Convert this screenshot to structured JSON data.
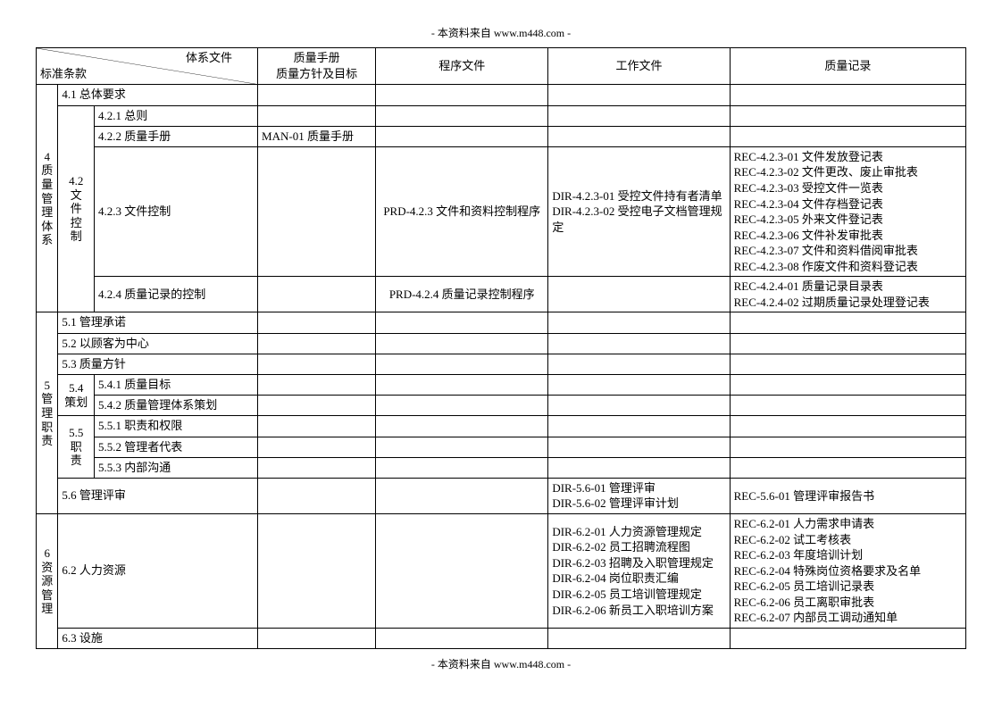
{
  "source_text": "- 本资料来自 www.m448.com -",
  "header": {
    "diag_top": "体系文件",
    "diag_bottom": "标准条款",
    "manual": "质量手册\n质量方针及目标",
    "proc": "程序文件",
    "work": "工作文件",
    "rec": "质量记录"
  },
  "s4": {
    "label": "4\n质\n量\n管\n理\n体\n系",
    "r1": "4.1 总体要求",
    "s42_label": "4.2\n文\n件\n控\n制",
    "r421": "4.2.1 总则",
    "r422": "4.2.2 质量手册",
    "r422_manual": "MAN-01  质量手册",
    "r423": "4.2.3 文件控制",
    "r423_proc": "PRD-4.2.3 文件和资料控制程序",
    "r423_work": [
      "DIR-4.2.3-01 受控文件持有者清单",
      "DIR-4.2.3-02 受控电子文档管理规定"
    ],
    "r423_rec": [
      "REC-4.2.3-01 文件发放登记表",
      "REC-4.2.3-02 文件更改、废止审批表",
      "REC-4.2.3-03 受控文件一览表",
      "REC-4.2.3-04 文件存档登记表",
      "REC-4.2.3-05 外来文件登记表",
      "REC-4.2.3-06 文件补发审批表",
      "REC-4.2.3-07 文件和资料借阅审批表",
      "REC-4.2.3-08 作废文件和资料登记表"
    ],
    "r424": "4.2.4 质量记录的控制",
    "r424_proc": "PRD-4.2.4 质量记录控制程序",
    "r424_rec": [
      "REC-4.2.4-01 质量记录目录表",
      "REC-4.2.4-02 过期质量记录处理登记表"
    ]
  },
  "s5": {
    "label": "5\n管\n理\n职\n责",
    "r51": "5.1 管理承诺",
    "r52": "5.2 以顾客为中心",
    "r53": "5.3 质量方针",
    "s54_label": "5.4\n策划",
    "r541": "5.4.1 质量目标",
    "r542": "5.4.2 质量管理体系策划",
    "s55_label": "5.5\n职\n责",
    "r551": "5.5.1 职责和权限",
    "r552": "5.5.2 管理者代表",
    "r553": "5.5.3 内部沟通",
    "r56": "5.6 管理评审",
    "r56_work": [
      "DIR-5.6-01 管理评审",
      "DIR-5.6-02 管理评审计划"
    ],
    "r56_rec": [
      "REC-5.6-01 管理评审报告书"
    ]
  },
  "s6": {
    "label": "6\n资\n源\n管\n理",
    "r62": "6.2 人力资源",
    "r62_work": [
      "DIR-6.2-01 人力资源管理规定",
      "DIR-6.2-02 员工招聘流程图",
      "DIR-6.2-03 招聘及入职管理规定",
      "DIR-6.2-04 岗位职责汇编",
      "DIR-6.2-05 员工培训管理规定",
      "DIR-6.2-06 新员工入职培训方案"
    ],
    "r62_rec": [
      "REC-6.2-01 人力需求申请表",
      "REC-6.2-02 试工考核表",
      "REC-6.2-03 年度培训计划",
      "REC-6.2-04 特殊岗位资格要求及名单",
      "REC-6.2-05 员工培训记录表",
      "REC-6.2-06 员工离职审批表",
      "REC-6.2-07 内部员工调动通知单"
    ],
    "r63": "6.3 设施"
  }
}
